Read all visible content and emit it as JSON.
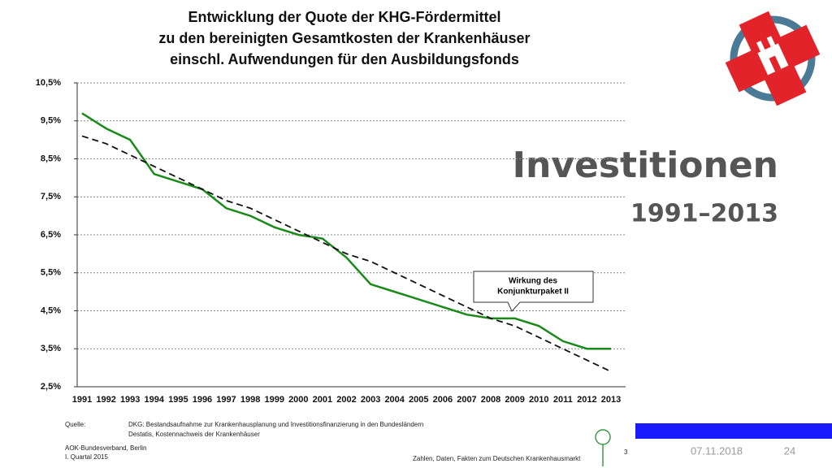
{
  "chart_data": {
    "type": "line",
    "title": [
      "Entwicklung der Quote der KHG-Fördermittel",
      "zu den bereinigten Gesamtkosten der Krankenhäuser",
      "einschl. Aufwendungen für den Ausbildungsfonds"
    ],
    "categories": [
      "1991",
      "1992",
      "1993",
      "1994",
      "1995",
      "1996",
      "1997",
      "1998",
      "1999",
      "2000",
      "2001",
      "2002",
      "2003",
      "2004",
      "2005",
      "2006",
      "2007",
      "2008",
      "2009",
      "2010",
      "2011",
      "2012",
      "2013"
    ],
    "series": [
      {
        "color": "#1a8a1a",
        "values": [
          9.7,
          9.3,
          9.0,
          8.1,
          7.9,
          7.7,
          7.2,
          7.0,
          6.7,
          6.5,
          6.4,
          5.9,
          5.2,
          5.0,
          4.8,
          4.6,
          4.4,
          4.3,
          4.3,
          4.1,
          3.7,
          3.5,
          3.5
        ]
      },
      {
        "color": "#111111",
        "dashed": true,
        "values": [
          9.1,
          8.9,
          8.6,
          8.3,
          8.0,
          7.7,
          7.4,
          7.2,
          6.9,
          6.6,
          6.3,
          6.0,
          5.8,
          5.5,
          5.2,
          4.9,
          4.6,
          4.3,
          4.1,
          3.8,
          3.5,
          3.2,
          2.9
        ]
      }
    ],
    "ylim": [
      2.5,
      10.5
    ],
    "yticks": [
      {
        "value": 2.5,
        "label": "2,5%"
      },
      {
        "value": 3.5,
        "label": "3,5%"
      },
      {
        "value": 4.5,
        "label": "4,5%"
      },
      {
        "value": 5.5,
        "label": "5,5%"
      },
      {
        "value": 6.5,
        "label": "6,5%"
      },
      {
        "value": 7.5,
        "label": "7,5%"
      },
      {
        "value": 8.5,
        "label": "8,5%"
      },
      {
        "value": 9.5,
        "label": "9,5%"
      },
      {
        "value": 10.5,
        "label": "10,5%"
      }
    ],
    "grid": true,
    "annotation": [
      "Wirkung des",
      "Konjunkturpaket II"
    ]
  },
  "slide": {
    "heading": "Investitionen",
    "subheading": "1991–2013",
    "source_label": "Quelle:",
    "source_lines": [
      "DKG: Bestandsaufnahme zur Krankenhausplanung und Investitionsfinanzierung in den Bundesländern",
      "Destatis, Kostennachweis der Krankenhäuser"
    ],
    "publisher": [
      "AOK-Bundesverband, Berlin",
      "I. Quartal 2015"
    ],
    "footer_text": "Zahlen, Daten, Fakten zum Deutschen Krankenhausmarkt",
    "inner_page": "3",
    "date": "07.11.2018",
    "page": "24"
  }
}
